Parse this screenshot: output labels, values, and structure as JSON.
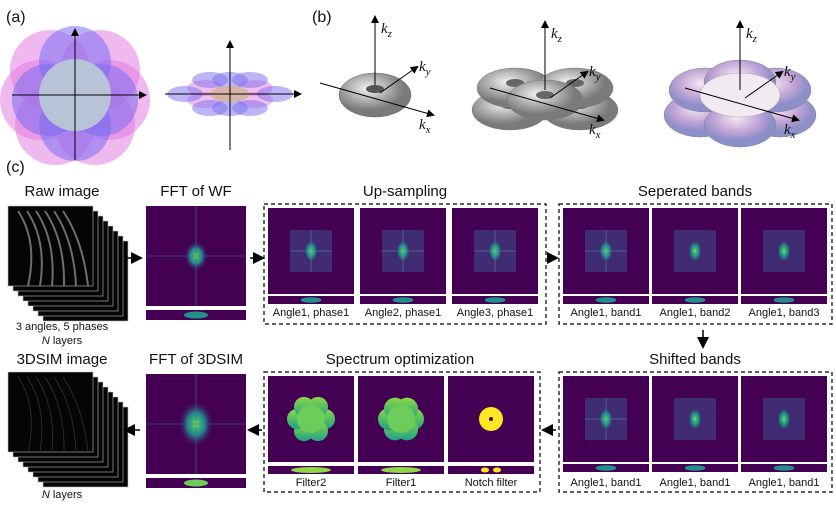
{
  "panel_a": {
    "label": "(a)"
  },
  "panel_b": {
    "label": "(b)",
    "plots": [
      {
        "axes": [
          {
            "k": "k",
            "sub": "z"
          },
          {
            "k": "k",
            "sub": "y"
          },
          {
            "k": "k",
            "sub": "x"
          }
        ]
      },
      {
        "axes": [
          {
            "k": "k",
            "sub": "z"
          },
          {
            "k": "k",
            "sub": "y"
          },
          {
            "k": "k",
            "sub": "x"
          }
        ]
      },
      {
        "axes": [
          {
            "k": "k",
            "sub": "z"
          },
          {
            "k": "k",
            "sub": "y"
          },
          {
            "k": "k",
            "sub": "x"
          }
        ]
      }
    ]
  },
  "panel_c": {
    "label": "(c)",
    "row1": {
      "raw": {
        "title": "Raw image",
        "caption": "3 angles, 5 phases",
        "layers": {
          "italic": "N",
          "rest": " layers"
        }
      },
      "fft": {
        "title": "FFT of WF"
      },
      "upsampling": {
        "title": "Up-sampling",
        "tiles": [
          "Angle1, phase1",
          "Angle2, phase1",
          "Angle3, phase1"
        ]
      },
      "separated": {
        "title": "Seperated bands",
        "tiles": [
          "Angle1, band1",
          "Angle1, band2",
          "Angle1, band3"
        ]
      }
    },
    "row2": {
      "sim": {
        "title": "3DSIM image",
        "layers": {
          "italic": "N",
          "rest": " layers"
        }
      },
      "fft": {
        "title": "FFT of 3DSIM"
      },
      "optimization": {
        "title": "Spectrum optimization",
        "tiles": [
          "Filter2",
          "Filter1",
          "Notch filter"
        ]
      },
      "shifted": {
        "title": "Shifted bands",
        "tiles": [
          "Angle1, band1",
          "Angle1, band1",
          "Angle1, band1"
        ]
      }
    }
  }
}
